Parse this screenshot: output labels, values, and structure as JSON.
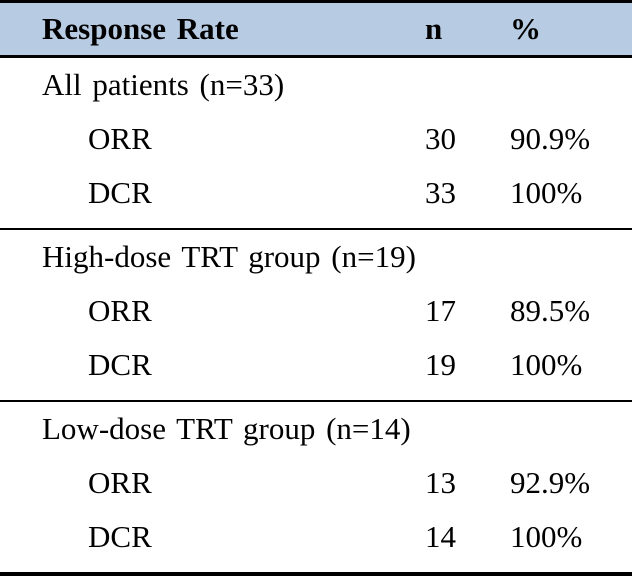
{
  "table": {
    "header": {
      "label": "Response Rate",
      "col_n": "n",
      "col_pct": "%"
    },
    "sections": [
      {
        "title": "All patients (n=33)",
        "rows": [
          {
            "label": "ORR",
            "n": "30",
            "pct": "90.9%"
          },
          {
            "label": "DCR",
            "n": "33",
            "pct": "100%"
          }
        ]
      },
      {
        "title": "High-dose TRT group (n=19)",
        "rows": [
          {
            "label": "ORR",
            "n": "17",
            "pct": "89.5%"
          },
          {
            "label": "DCR",
            "n": "19",
            "pct": "100%"
          }
        ]
      },
      {
        "title": "Low-dose TRT group (n=14)",
        "rows": [
          {
            "label": "ORR",
            "n": "13",
            "pct": "92.9%"
          },
          {
            "label": "DCR",
            "n": "14",
            "pct": "100%"
          }
        ]
      }
    ],
    "colors": {
      "header_bg": "#B7CBE3",
      "border": "#000000",
      "text": "#000000"
    }
  }
}
